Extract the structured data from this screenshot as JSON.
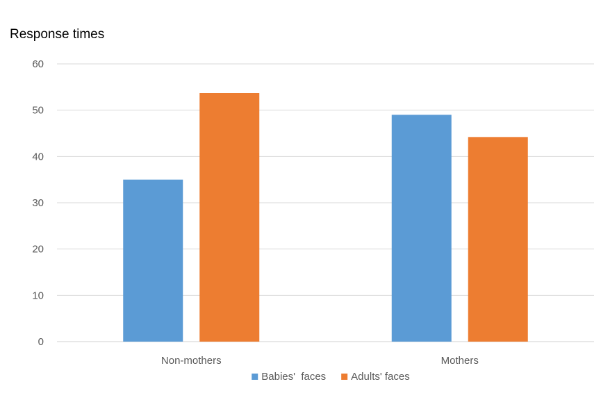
{
  "chart_data": {
    "type": "bar",
    "ylabel": "Response times",
    "xlabel": "",
    "categories": [
      "Non-mothers",
      "Mothers"
    ],
    "series": [
      {
        "name": "Babies'  faces",
        "values": [
          35,
          49
        ],
        "color": "#5B9BD5"
      },
      {
        "name": "Adults' faces",
        "values": [
          53.7,
          44.2
        ],
        "color": "#ED7D31"
      }
    ],
    "ylim": [
      0,
      60
    ],
    "yticks": [
      0,
      10,
      20,
      30,
      40,
      50,
      60
    ],
    "grid": true,
    "legend": "bottom"
  }
}
